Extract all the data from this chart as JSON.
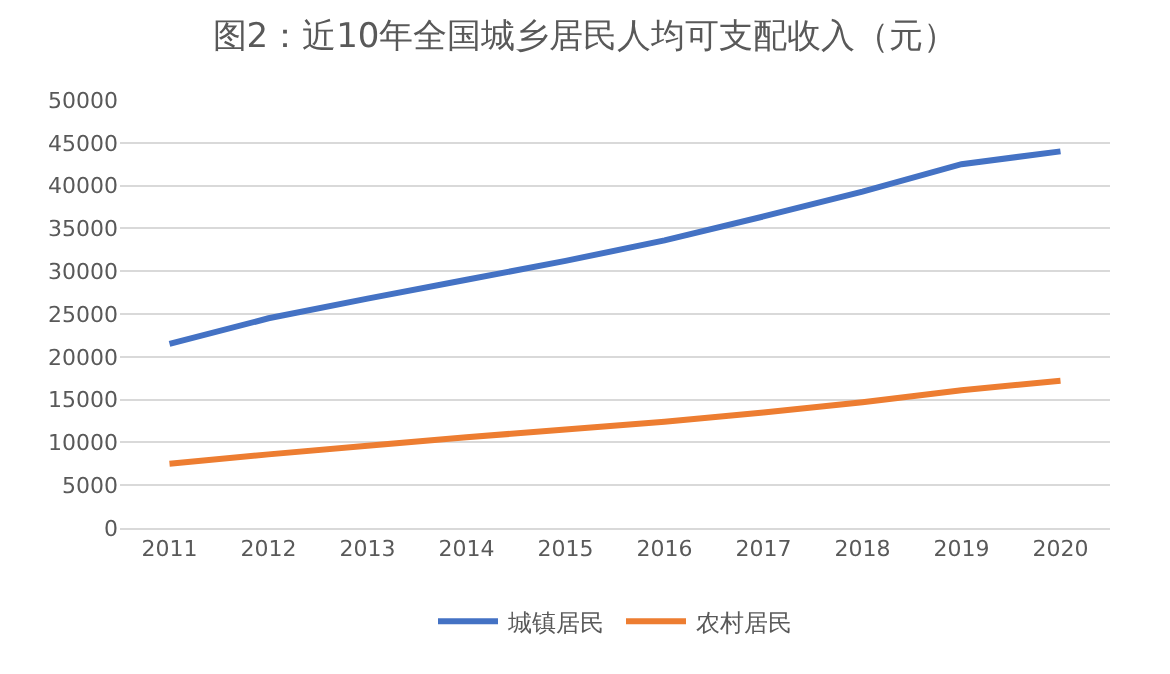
{
  "chart_data": {
    "type": "line",
    "title": "图2：近10年全国城乡居民人均可支配收入（元）",
    "categories": [
      "2011",
      "2012",
      "2013",
      "2014",
      "2015",
      "2016",
      "2017",
      "2018",
      "2019",
      "2020"
    ],
    "series": [
      {
        "name": "城镇居民",
        "color": "#4472c4",
        "values": [
          21500,
          24500,
          26800,
          29000,
          31200,
          33600,
          36400,
          39300,
          42500,
          44000
        ]
      },
      {
        "name": "农村居民",
        "color": "#ed7d31",
        "values": [
          7500,
          8600,
          9600,
          10600,
          11500,
          12400,
          13500,
          14700,
          16100,
          17200
        ]
      }
    ],
    "ylim": [
      0,
      50000
    ],
    "yticks": [
      0,
      5000,
      10000,
      15000,
      20000,
      25000,
      30000,
      35000,
      40000,
      45000,
      50000
    ],
    "grid": "y",
    "legend": "bottom",
    "marker": "none",
    "line_style": "solid"
  }
}
